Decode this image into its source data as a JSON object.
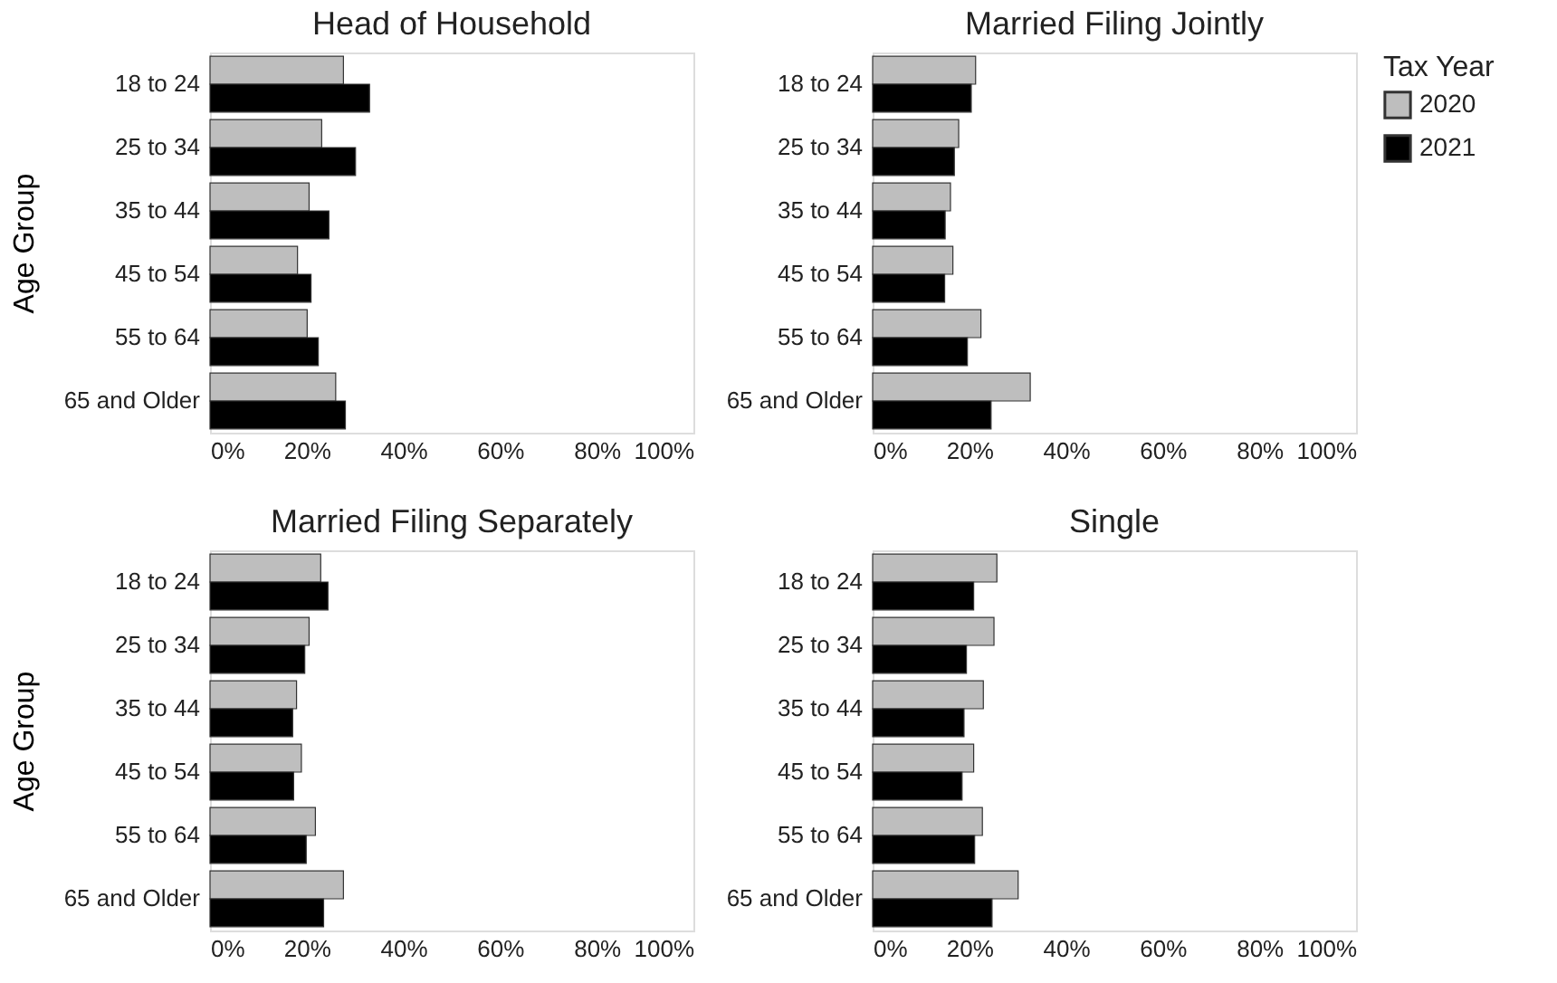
{
  "chart_data": [
    {
      "type": "bar",
      "orientation": "horizontal",
      "title": "Head of Household",
      "ylabel": "Age Group",
      "categories": [
        "18 to 24",
        "25 to 34",
        "35 to 44",
        "45 to 54",
        "55 to 64",
        "65 and Older"
      ],
      "series": [
        {
          "name": "2020",
          "color": "#bebebe",
          "values": [
            27.6,
            23.1,
            20.5,
            18.1,
            20.1,
            26.0
          ]
        },
        {
          "name": "2021",
          "color": "#000000",
          "values": [
            33.0,
            30.1,
            24.6,
            20.9,
            22.4,
            28.0
          ]
        }
      ],
      "xlim": [
        0,
        100
      ],
      "xticks": [
        {
          "value": 0,
          "label": "0%"
        },
        {
          "value": 20,
          "label": "20%"
        },
        {
          "value": 40,
          "label": "40%"
        },
        {
          "value": 60,
          "label": "60%"
        },
        {
          "value": 80,
          "label": "80%"
        },
        {
          "value": 100,
          "label": "100%"
        }
      ],
      "legend": "right",
      "legend_title": "Tax Year"
    },
    {
      "type": "bar",
      "orientation": "horizontal",
      "title": "Married Filing Jointly",
      "categories": [
        "18 to 24",
        "25 to 34",
        "35 to 44",
        "45 to 54",
        "55 to 64",
        "65 and Older"
      ],
      "series": [
        {
          "name": "2020",
          "color": "#bebebe",
          "values": [
            21.3,
            17.8,
            16.1,
            16.6,
            22.4,
            32.6
          ]
        },
        {
          "name": "2021",
          "color": "#000000",
          "values": [
            20.4,
            16.9,
            15.0,
            14.9,
            19.6,
            24.5
          ]
        }
      ],
      "xlim": [
        0,
        100
      ],
      "xticks": [
        {
          "value": 0,
          "label": "0%"
        },
        {
          "value": 20,
          "label": "20%"
        },
        {
          "value": 40,
          "label": "40%"
        },
        {
          "value": 60,
          "label": "60%"
        },
        {
          "value": 80,
          "label": "80%"
        },
        {
          "value": 100,
          "label": "100%"
        }
      ],
      "legend": false
    },
    {
      "type": "bar",
      "orientation": "horizontal",
      "title": "Married Filing Separately",
      "ylabel": "Age Group",
      "categories": [
        "18 to 24",
        "25 to 34",
        "35 to 44",
        "45 to 54",
        "55 to 64",
        "65 and Older"
      ],
      "series": [
        {
          "name": "2020",
          "color": "#bebebe",
          "values": [
            22.9,
            20.5,
            17.9,
            18.9,
            21.8,
            27.6
          ]
        },
        {
          "name": "2021",
          "color": "#000000",
          "values": [
            24.4,
            19.6,
            17.1,
            17.3,
            19.9,
            23.5
          ]
        }
      ],
      "xlim": [
        0,
        100
      ],
      "xticks": [
        {
          "value": 0,
          "label": "0%"
        },
        {
          "value": 20,
          "label": "20%"
        },
        {
          "value": 40,
          "label": "40%"
        },
        {
          "value": 60,
          "label": "60%"
        },
        {
          "value": 80,
          "label": "80%"
        },
        {
          "value": 100,
          "label": "100%"
        }
      ],
      "legend": false
    },
    {
      "type": "bar",
      "orientation": "horizontal",
      "title": "Single",
      "categories": [
        "18 to 24",
        "25 to 34",
        "35 to 44",
        "45 to 54",
        "55 to 64",
        "65 and Older"
      ],
      "series": [
        {
          "name": "2020",
          "color": "#bebebe",
          "values": [
            25.7,
            25.1,
            22.9,
            20.9,
            22.7,
            30.1
          ]
        },
        {
          "name": "2021",
          "color": "#000000",
          "values": [
            20.9,
            19.4,
            18.9,
            18.5,
            21.1,
            24.7
          ]
        }
      ],
      "xlim": [
        0,
        100
      ],
      "xticks": [
        {
          "value": 0,
          "label": "0%"
        },
        {
          "value": 20,
          "label": "20%"
        },
        {
          "value": 40,
          "label": "40%"
        },
        {
          "value": 60,
          "label": "60%"
        },
        {
          "value": 80,
          "label": "80%"
        },
        {
          "value": 100,
          "label": "100%"
        }
      ],
      "legend": false
    }
  ]
}
